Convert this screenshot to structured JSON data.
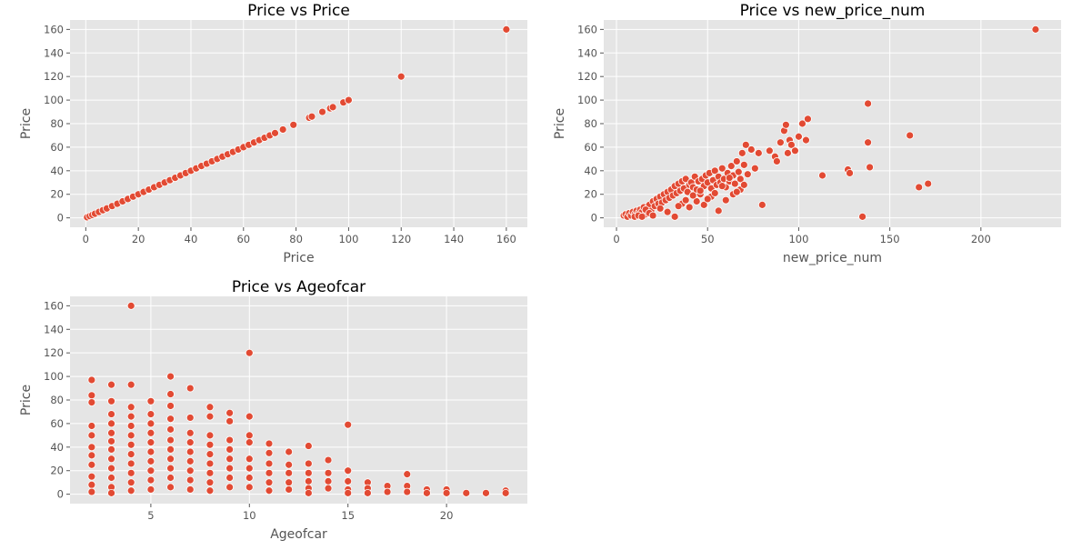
{
  "chart_data": [
    {
      "type": "scatter",
      "title": "Price vs Price",
      "xlabel": "Price",
      "ylabel": "Price",
      "xlim": [
        -6,
        168
      ],
      "ylim": [
        -8,
        168
      ],
      "xticks": [
        0,
        20,
        40,
        60,
        80,
        100,
        120,
        140,
        160
      ],
      "yticks": [
        0,
        20,
        40,
        60,
        80,
        100,
        120,
        140,
        160
      ],
      "grid": true,
      "marker_color": "#E24A33",
      "points": [
        [
          0.5,
          0.5
        ],
        [
          1.5,
          1.5
        ],
        [
          2.5,
          2.5
        ],
        [
          3.5,
          3.5
        ],
        [
          5,
          5
        ],
        [
          6.5,
          6.5
        ],
        [
          8,
          8
        ],
        [
          10,
          10
        ],
        [
          12,
          12
        ],
        [
          14,
          14
        ],
        [
          16,
          16
        ],
        [
          18,
          18
        ],
        [
          20,
          20
        ],
        [
          22,
          22
        ],
        [
          24,
          24
        ],
        [
          26,
          26
        ],
        [
          28,
          28
        ],
        [
          30,
          30
        ],
        [
          32,
          32
        ],
        [
          34,
          34
        ],
        [
          36,
          36
        ],
        [
          38,
          38
        ],
        [
          40,
          40
        ],
        [
          42,
          42
        ],
        [
          44,
          44
        ],
        [
          46,
          46
        ],
        [
          48,
          48
        ],
        [
          50,
          50
        ],
        [
          52,
          52
        ],
        [
          54,
          54
        ],
        [
          56,
          56
        ],
        [
          58,
          58
        ],
        [
          60,
          60
        ],
        [
          62,
          62
        ],
        [
          64,
          64
        ],
        [
          66,
          66
        ],
        [
          68,
          68
        ],
        [
          70,
          70
        ],
        [
          72,
          72
        ],
        [
          75,
          75
        ],
        [
          79,
          79
        ],
        [
          85,
          85
        ],
        [
          86,
          86
        ],
        [
          90,
          90
        ],
        [
          93,
          93
        ],
        [
          94,
          94
        ],
        [
          98,
          98
        ],
        [
          100,
          100
        ],
        [
          120,
          120
        ],
        [
          160,
          160
        ]
      ]
    },
    {
      "type": "scatter",
      "title": "Price vs new_price_num",
      "xlabel": "new_price_num",
      "ylabel": "Price",
      "xlim": [
        -7,
        244
      ],
      "ylim": [
        -8,
        168
      ],
      "xticks": [
        0,
        50,
        100,
        150,
        200
      ],
      "yticks": [
        0,
        20,
        40,
        60,
        80,
        100,
        120,
        140,
        160
      ],
      "grid": true,
      "marker_color": "#E24A33",
      "points": [
        [
          4,
          2
        ],
        [
          5,
          3
        ],
        [
          6,
          1
        ],
        [
          7,
          4
        ],
        [
          8,
          2
        ],
        [
          9,
          5
        ],
        [
          10,
          3
        ],
        [
          11,
          6
        ],
        [
          12,
          4
        ],
        [
          13,
          7
        ],
        [
          14,
          5
        ],
        [
          15,
          9
        ],
        [
          16,
          3
        ],
        [
          17,
          8
        ],
        [
          18,
          11
        ],
        [
          19,
          6
        ],
        [
          20,
          14
        ],
        [
          21,
          10
        ],
        [
          22,
          16
        ],
        [
          23,
          12
        ],
        [
          24,
          18
        ],
        [
          25,
          13
        ],
        [
          26,
          20
        ],
        [
          27,
          15
        ],
        [
          28,
          22
        ],
        [
          29,
          17
        ],
        [
          30,
          24
        ],
        [
          31,
          19
        ],
        [
          32,
          27
        ],
        [
          33,
          21
        ],
        [
          34,
          29
        ],
        [
          35,
          23
        ],
        [
          36,
          31
        ],
        [
          37,
          25
        ],
        [
          38,
          33
        ],
        [
          39,
          22
        ],
        [
          40,
          28
        ],
        [
          41,
          30
        ],
        [
          42,
          26
        ],
        [
          43,
          35
        ],
        [
          44,
          24
        ],
        [
          45,
          31
        ],
        [
          46,
          20
        ],
        [
          47,
          33
        ],
        [
          48,
          27
        ],
        [
          49,
          36
        ],
        [
          50,
          30
        ],
        [
          51,
          38
        ],
        [
          52,
          25
        ],
        [
          53,
          32
        ],
        [
          54,
          40
        ],
        [
          55,
          28
        ],
        [
          56,
          35
        ],
        [
          57,
          30
        ],
        [
          58,
          42
        ],
        [
          59,
          33
        ],
        [
          60,
          26
        ],
        [
          61,
          38
        ],
        [
          62,
          31
        ],
        [
          63,
          44
        ],
        [
          64,
          36
        ],
        [
          65,
          29
        ],
        [
          66,
          48
        ],
        [
          67,
          39
        ],
        [
          68,
          33
        ],
        [
          69,
          55
        ],
        [
          70,
          45
        ],
        [
          71,
          62
        ],
        [
          72,
          37
        ],
        [
          74,
          58
        ],
        [
          76,
          42
        ],
        [
          78,
          55
        ],
        [
          80,
          11
        ],
        [
          84,
          57
        ],
        [
          87,
          52
        ],
        [
          88,
          48
        ],
        [
          90,
          64
        ],
        [
          92,
          74
        ],
        [
          93,
          79
        ],
        [
          94,
          55
        ],
        [
          95,
          66
        ],
        [
          96,
          62
        ],
        [
          98,
          57
        ],
        [
          100,
          69
        ],
        [
          102,
          80
        ],
        [
          104,
          66
        ],
        [
          105,
          84
        ],
        [
          113,
          36
        ],
        [
          127,
          41
        ],
        [
          128,
          38
        ],
        [
          135,
          1
        ],
        [
          138,
          97
        ],
        [
          138,
          64
        ],
        [
          139,
          43
        ],
        [
          161,
          70
        ],
        [
          166,
          26
        ],
        [
          171,
          29
        ],
        [
          230,
          160
        ],
        [
          10,
          1
        ],
        [
          12,
          2
        ],
        [
          14,
          1
        ],
        [
          16,
          7
        ],
        [
          18,
          4
        ],
        [
          20,
          2
        ],
        [
          24,
          8
        ],
        [
          28,
          5
        ],
        [
          32,
          1
        ],
        [
          36,
          12
        ],
        [
          40,
          9
        ],
        [
          44,
          14
        ],
        [
          48,
          11
        ],
        [
          52,
          18
        ],
        [
          56,
          6
        ],
        [
          60,
          15
        ],
        [
          64,
          20
        ],
        [
          68,
          24
        ],
        [
          34,
          10
        ],
        [
          38,
          15
        ],
        [
          42,
          19
        ],
        [
          46,
          23
        ],
        [
          50,
          16
        ],
        [
          54,
          21
        ],
        [
          58,
          27
        ],
        [
          62,
          34
        ],
        [
          66,
          22
        ],
        [
          70,
          28
        ]
      ]
    },
    {
      "type": "scatter",
      "title": "Price vs Ageofcar",
      "xlabel": "Ageofcar",
      "ylabel": "Price",
      "xlim": [
        0.9,
        24.1
      ],
      "ylim": [
        -8,
        168
      ],
      "xticks": [
        5,
        10,
        15,
        20
      ],
      "yticks": [
        0,
        20,
        40,
        60,
        80,
        100,
        120,
        140,
        160
      ],
      "grid": true,
      "marker_color": "#E24A33",
      "points": [
        [
          2,
          97
        ],
        [
          2,
          84
        ],
        [
          2,
          78
        ],
        [
          2,
          58
        ],
        [
          2,
          50
        ],
        [
          2,
          40
        ],
        [
          2,
          33
        ],
        [
          2,
          25
        ],
        [
          2,
          15
        ],
        [
          2,
          8
        ],
        [
          2,
          2
        ],
        [
          3,
          93
        ],
        [
          3,
          79
        ],
        [
          3,
          68
        ],
        [
          3,
          60
        ],
        [
          3,
          52
        ],
        [
          3,
          45
        ],
        [
          3,
          38
        ],
        [
          3,
          30
        ],
        [
          3,
          22
        ],
        [
          3,
          14
        ],
        [
          3,
          6
        ],
        [
          3,
          1
        ],
        [
          4,
          160
        ],
        [
          4,
          93
        ],
        [
          4,
          74
        ],
        [
          4,
          66
        ],
        [
          4,
          58
        ],
        [
          4,
          50
        ],
        [
          4,
          42
        ],
        [
          4,
          34
        ],
        [
          4,
          26
        ],
        [
          4,
          18
        ],
        [
          4,
          10
        ],
        [
          4,
          3
        ],
        [
          5,
          79
        ],
        [
          5,
          68
        ],
        [
          5,
          60
        ],
        [
          5,
          52
        ],
        [
          5,
          44
        ],
        [
          5,
          36
        ],
        [
          5,
          28
        ],
        [
          5,
          20
        ],
        [
          5,
          12
        ],
        [
          5,
          4
        ],
        [
          6,
          100
        ],
        [
          6,
          85
        ],
        [
          6,
          75
        ],
        [
          6,
          64
        ],
        [
          6,
          55
        ],
        [
          6,
          46
        ],
        [
          6,
          38
        ],
        [
          6,
          30
        ],
        [
          6,
          22
        ],
        [
          6,
          14
        ],
        [
          6,
          6
        ],
        [
          7,
          90
        ],
        [
          7,
          65
        ],
        [
          7,
          52
        ],
        [
          7,
          44
        ],
        [
          7,
          36
        ],
        [
          7,
          28
        ],
        [
          7,
          20
        ],
        [
          7,
          12
        ],
        [
          7,
          4
        ],
        [
          8,
          74
        ],
        [
          8,
          66
        ],
        [
          8,
          50
        ],
        [
          8,
          42
        ],
        [
          8,
          34
        ],
        [
          8,
          26
        ],
        [
          8,
          18
        ],
        [
          8,
          10
        ],
        [
          8,
          3
        ],
        [
          9,
          69
        ],
        [
          9,
          62
        ],
        [
          9,
          46
        ],
        [
          9,
          38
        ],
        [
          9,
          30
        ],
        [
          9,
          22
        ],
        [
          9,
          14
        ],
        [
          9,
          6
        ],
        [
          10,
          120
        ],
        [
          10,
          66
        ],
        [
          10,
          50
        ],
        [
          10,
          44
        ],
        [
          10,
          30
        ],
        [
          10,
          22
        ],
        [
          10,
          14
        ],
        [
          10,
          6
        ],
        [
          11,
          43
        ],
        [
          11,
          35
        ],
        [
          11,
          26
        ],
        [
          11,
          18
        ],
        [
          11,
          10
        ],
        [
          11,
          3
        ],
        [
          12,
          36
        ],
        [
          12,
          25
        ],
        [
          12,
          18
        ],
        [
          12,
          10
        ],
        [
          12,
          4
        ],
        [
          13,
          41
        ],
        [
          13,
          26
        ],
        [
          13,
          18
        ],
        [
          13,
          11
        ],
        [
          13,
          5
        ],
        [
          13,
          1
        ],
        [
          14,
          29
        ],
        [
          14,
          18
        ],
        [
          14,
          11
        ],
        [
          14,
          5
        ],
        [
          15,
          59
        ],
        [
          15,
          20
        ],
        [
          15,
          11
        ],
        [
          15,
          4
        ],
        [
          15,
          1
        ],
        [
          16,
          10
        ],
        [
          16,
          5
        ],
        [
          16,
          1
        ],
        [
          17,
          7
        ],
        [
          17,
          2
        ],
        [
          18,
          17
        ],
        [
          18,
          7
        ],
        [
          18,
          2
        ],
        [
          19,
          4
        ],
        [
          19,
          1
        ],
        [
          20,
          4
        ],
        [
          20,
          1
        ],
        [
          21,
          1
        ],
        [
          22,
          1
        ],
        [
          23,
          3
        ],
        [
          23,
          1
        ]
      ]
    }
  ]
}
